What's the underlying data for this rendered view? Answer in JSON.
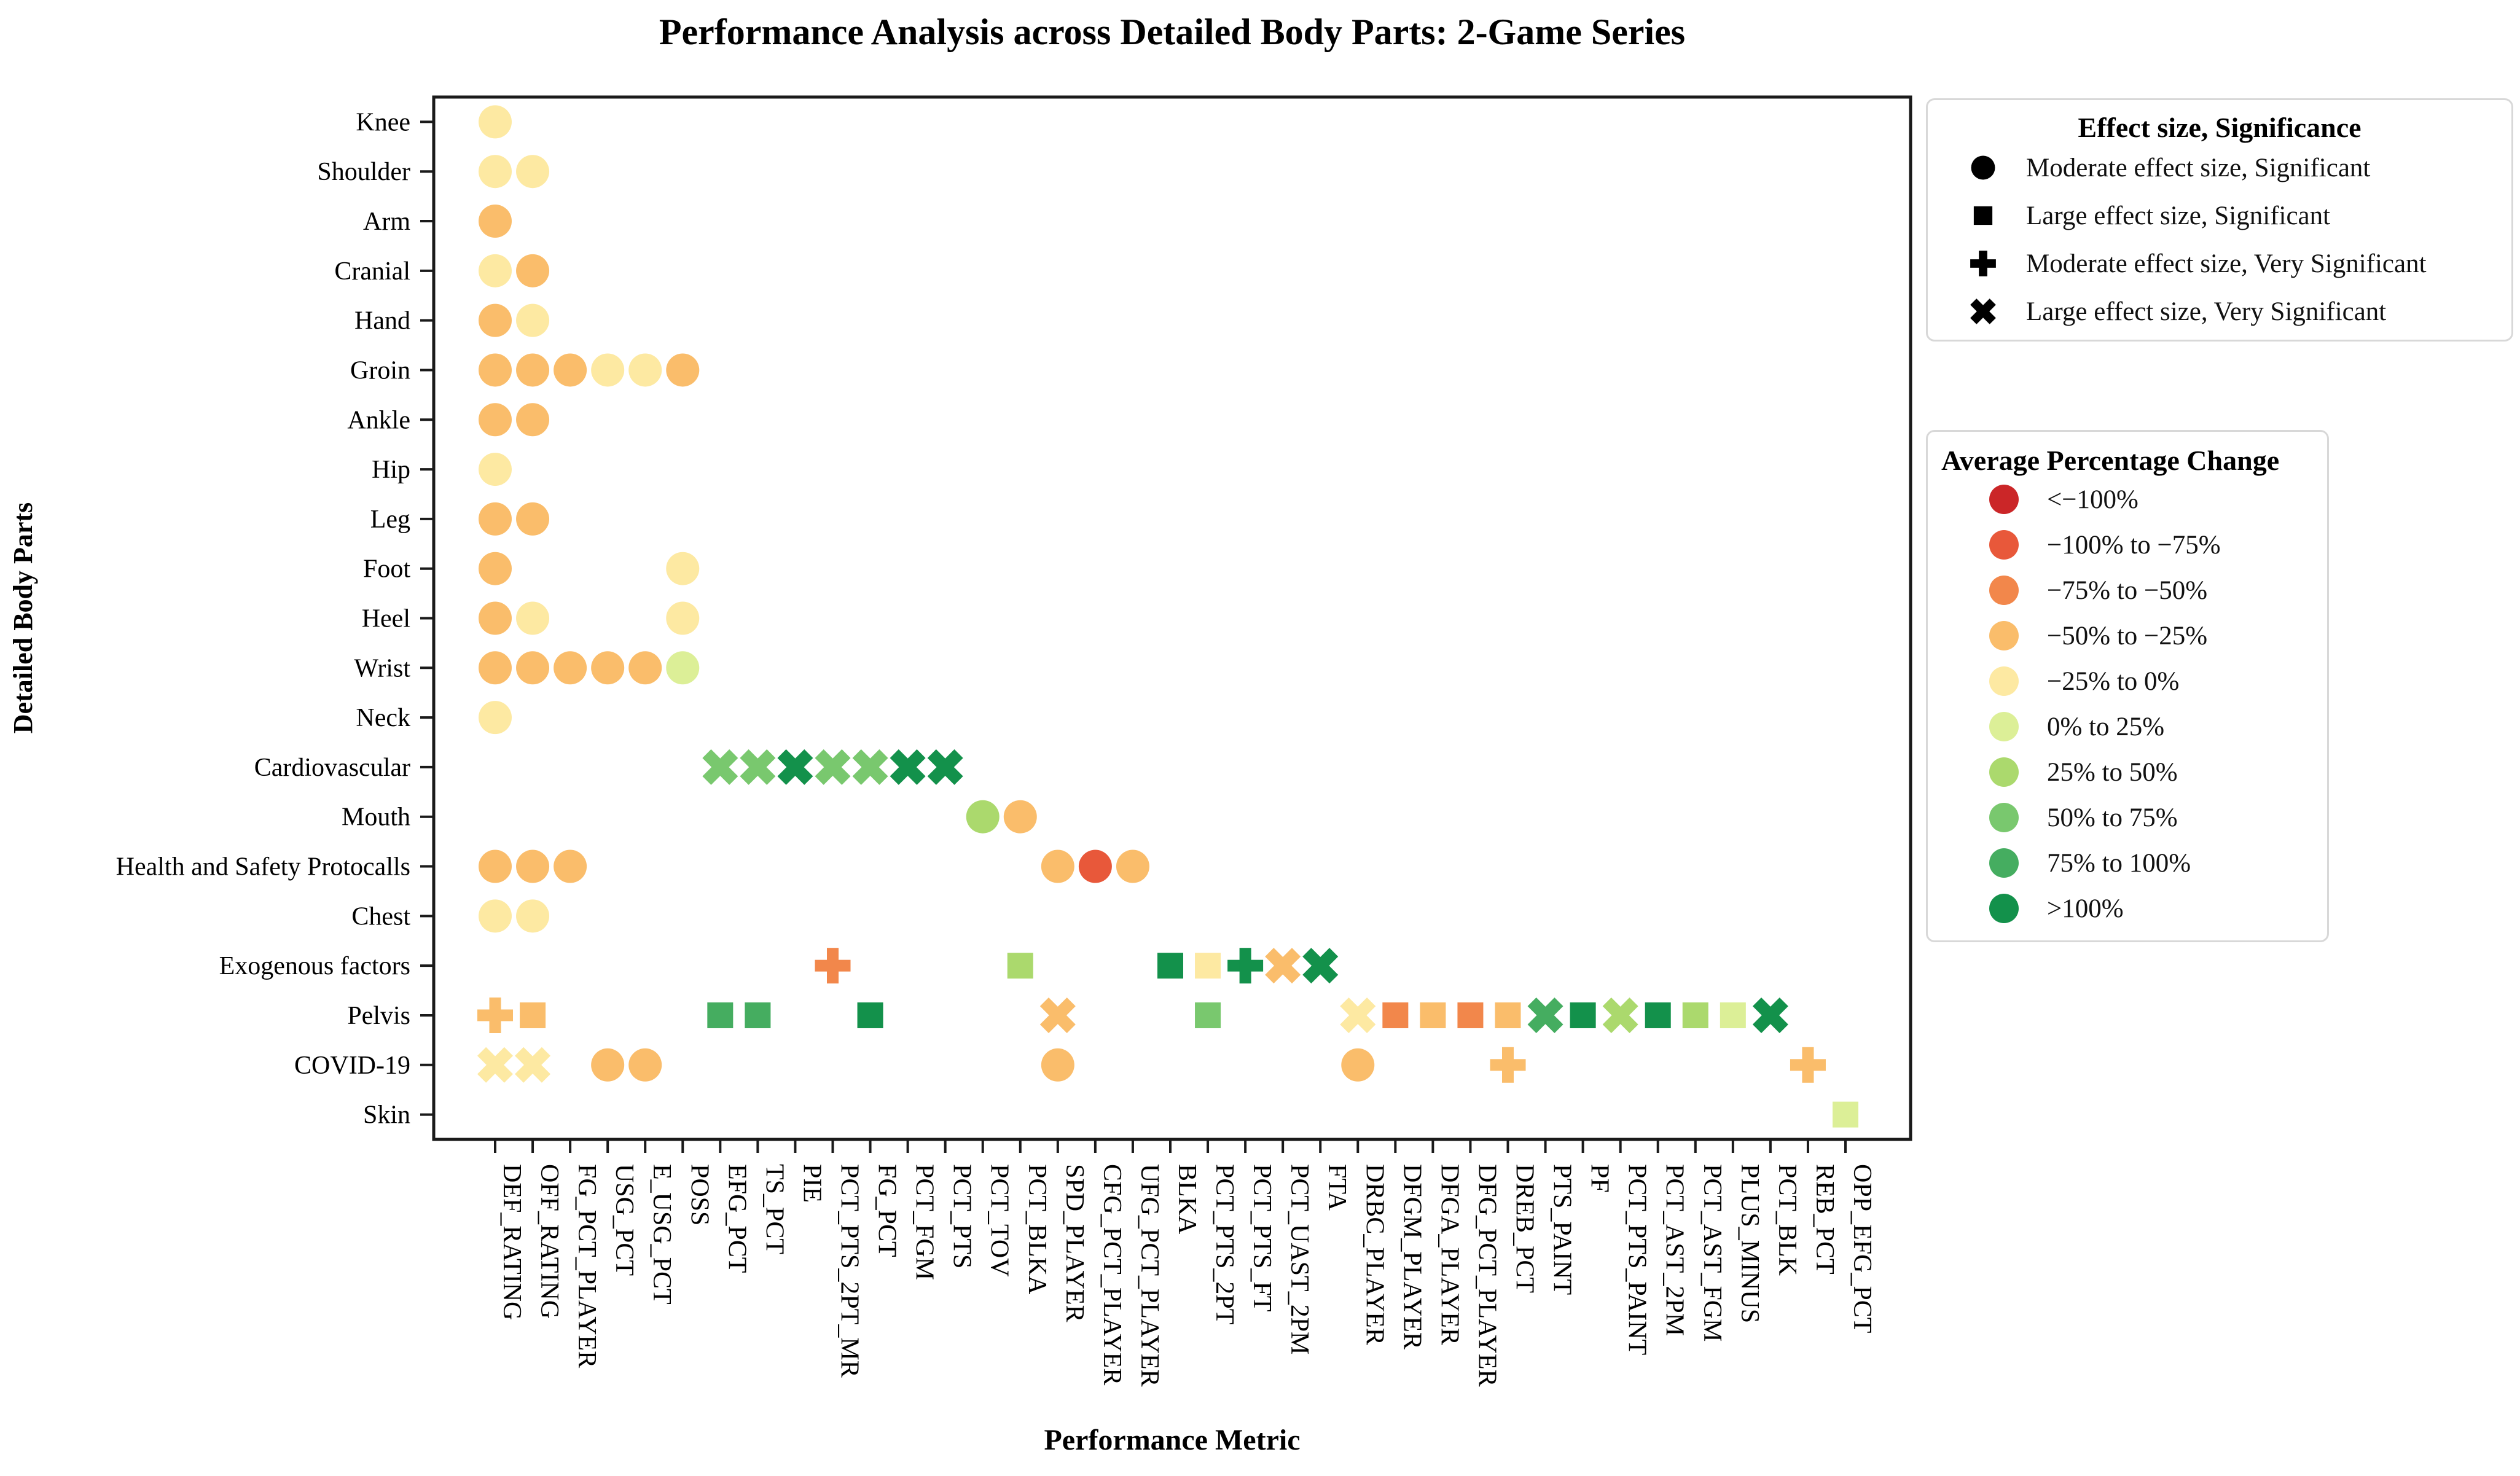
{
  "title": "Performance Analysis across Detailed Body Parts: 2-Game Series",
  "chart_data": {
    "type": "scatter",
    "title": "Performance Analysis across Detailed Body Parts: 2-Game Series",
    "xlabel": "Performance Metric",
    "ylabel": "Detailed Body Parts",
    "grid": false,
    "x_categories": [
      "DEF_RATING",
      "OFF_RATING",
      "FG_PCT_PLAYER",
      "USG_PCT",
      "E_USG_PCT",
      "POSS",
      "EFG_PCT",
      "TS_PCT",
      "PIE",
      "PCT_PTS_2PT_MR",
      "FG_PCT",
      "PCT_FGM",
      "PCT_PTS",
      "PCT_TOV",
      "PCT_BLKA",
      "SPD_PLAYER",
      "CFG_PCT_PLAYER",
      "UFG_PCT_PLAYER",
      "BLKA",
      "PCT_PTS_2PT",
      "PCT_PTS_FT",
      "PCT_UAST_2PM",
      "FTA",
      "DRBC_PLAYER",
      "DFGM_PLAYER",
      "DFGA_PLAYER",
      "DFG_PCT_PLAYER",
      "DREB_PCT",
      "PTS_PAINT",
      "PF",
      "PCT_PTS_PAINT",
      "PCT_AST_2PM",
      "PCT_AST_FGM",
      "PLUS_MINUS",
      "PCT_BLK",
      "REB_PCT",
      "OPP_EFG_PCT"
    ],
    "y_categories": [
      "Knee",
      "Shoulder",
      "Arm",
      "Cranial",
      "Hand",
      "Groin",
      "Ankle",
      "Hip",
      "Leg",
      "Foot",
      "Heel",
      "Wrist",
      "Neck",
      "Cardiovascular",
      "Mouth",
      "Health and Safety Protocalls",
      "Chest",
      "Exogenous factors",
      "Pelvis",
      "COVID-19",
      "Skin"
    ],
    "shape_legend": {
      "title": "Effect size, Significance",
      "items": [
        {
          "marker": "circle",
          "label": "Moderate effect size, Significant"
        },
        {
          "marker": "square",
          "label": "Large effect size, Significant"
        },
        {
          "marker": "plus",
          "label": "Moderate effect size, Very Significant"
        },
        {
          "marker": "x",
          "label": "Large effect size, Very Significant"
        }
      ]
    },
    "color_legend": {
      "title": "Average Percentage Change",
      "items": [
        {
          "color": "#cb2628",
          "label": "<−100%"
        },
        {
          "color": "#e8583a",
          "label": "−100% to −75%"
        },
        {
          "color": "#f2874b",
          "label": "−75% to −50%"
        },
        {
          "color": "#fabd6b",
          "label": "−50% to −25%"
        },
        {
          "color": "#fde9a2",
          "label": "−25% to 0%"
        },
        {
          "color": "#dcef97",
          "label": "0% to 25%"
        },
        {
          "color": "#abd96d",
          "label": "25% to 50%"
        },
        {
          "color": "#79c86e",
          "label": "50% to 75%"
        },
        {
          "color": "#45ad60",
          "label": "75% to 100%"
        },
        {
          "color": "#13914b",
          "label": ">100%"
        }
      ]
    },
    "points": [
      {
        "row": "Knee",
        "col": "DEF_RATING",
        "shape": "circle",
        "bucket": 5
      },
      {
        "row": "Shoulder",
        "col": "DEF_RATING",
        "shape": "circle",
        "bucket": 5
      },
      {
        "row": "Shoulder",
        "col": "OFF_RATING",
        "shape": "circle",
        "bucket": 5
      },
      {
        "row": "Arm",
        "col": "DEF_RATING",
        "shape": "circle",
        "bucket": 4
      },
      {
        "row": "Cranial",
        "col": "DEF_RATING",
        "shape": "circle",
        "bucket": 5
      },
      {
        "row": "Cranial",
        "col": "OFF_RATING",
        "shape": "circle",
        "bucket": 4
      },
      {
        "row": "Hand",
        "col": "DEF_RATING",
        "shape": "circle",
        "bucket": 4
      },
      {
        "row": "Hand",
        "col": "OFF_RATING",
        "shape": "circle",
        "bucket": 5
      },
      {
        "row": "Groin",
        "col": "DEF_RATING",
        "shape": "circle",
        "bucket": 4
      },
      {
        "row": "Groin",
        "col": "OFF_RATING",
        "shape": "circle",
        "bucket": 4
      },
      {
        "row": "Groin",
        "col": "FG_PCT_PLAYER",
        "shape": "circle",
        "bucket": 4
      },
      {
        "row": "Groin",
        "col": "USG_PCT",
        "shape": "circle",
        "bucket": 5
      },
      {
        "row": "Groin",
        "col": "E_USG_PCT",
        "shape": "circle",
        "bucket": 5
      },
      {
        "row": "Groin",
        "col": "POSS",
        "shape": "circle",
        "bucket": 4
      },
      {
        "row": "Ankle",
        "col": "DEF_RATING",
        "shape": "circle",
        "bucket": 4
      },
      {
        "row": "Ankle",
        "col": "OFF_RATING",
        "shape": "circle",
        "bucket": 4
      },
      {
        "row": "Hip",
        "col": "DEF_RATING",
        "shape": "circle",
        "bucket": 5
      },
      {
        "row": "Leg",
        "col": "DEF_RATING",
        "shape": "circle",
        "bucket": 4
      },
      {
        "row": "Leg",
        "col": "OFF_RATING",
        "shape": "circle",
        "bucket": 4
      },
      {
        "row": "Foot",
        "col": "DEF_RATING",
        "shape": "circle",
        "bucket": 4
      },
      {
        "row": "Foot",
        "col": "POSS",
        "shape": "circle",
        "bucket": 5
      },
      {
        "row": "Heel",
        "col": "DEF_RATING",
        "shape": "circle",
        "bucket": 4
      },
      {
        "row": "Heel",
        "col": "OFF_RATING",
        "shape": "circle",
        "bucket": 5
      },
      {
        "row": "Heel",
        "col": "POSS",
        "shape": "circle",
        "bucket": 5
      },
      {
        "row": "Wrist",
        "col": "DEF_RATING",
        "shape": "circle",
        "bucket": 4
      },
      {
        "row": "Wrist",
        "col": "OFF_RATING",
        "shape": "circle",
        "bucket": 4
      },
      {
        "row": "Wrist",
        "col": "FG_PCT_PLAYER",
        "shape": "circle",
        "bucket": 4
      },
      {
        "row": "Wrist",
        "col": "USG_PCT",
        "shape": "circle",
        "bucket": 4
      },
      {
        "row": "Wrist",
        "col": "E_USG_PCT",
        "shape": "circle",
        "bucket": 4
      },
      {
        "row": "Wrist",
        "col": "POSS",
        "shape": "circle",
        "bucket": 6
      },
      {
        "row": "Neck",
        "col": "DEF_RATING",
        "shape": "circle",
        "bucket": 5
      },
      {
        "row": "Cardiovascular",
        "col": "EFG_PCT",
        "shape": "x",
        "bucket": 8
      },
      {
        "row": "Cardiovascular",
        "col": "TS_PCT",
        "shape": "x",
        "bucket": 8
      },
      {
        "row": "Cardiovascular",
        "col": "PIE",
        "shape": "x",
        "bucket": 10
      },
      {
        "row": "Cardiovascular",
        "col": "PCT_PTS_2PT_MR",
        "shape": "x",
        "bucket": 8
      },
      {
        "row": "Cardiovascular",
        "col": "FG_PCT",
        "shape": "x",
        "bucket": 8
      },
      {
        "row": "Cardiovascular",
        "col": "PCT_FGM",
        "shape": "x",
        "bucket": 10
      },
      {
        "row": "Cardiovascular",
        "col": "PCT_PTS",
        "shape": "x",
        "bucket": 10
      },
      {
        "row": "Mouth",
        "col": "PCT_TOV",
        "shape": "circle",
        "bucket": 7
      },
      {
        "row": "Mouth",
        "col": "PCT_BLKA",
        "shape": "circle",
        "bucket": 4
      },
      {
        "row": "Health and Safety Protocalls",
        "col": "DEF_RATING",
        "shape": "circle",
        "bucket": 4
      },
      {
        "row": "Health and Safety Protocalls",
        "col": "OFF_RATING",
        "shape": "circle",
        "bucket": 4
      },
      {
        "row": "Health and Safety Protocalls",
        "col": "FG_PCT_PLAYER",
        "shape": "circle",
        "bucket": 4
      },
      {
        "row": "Health and Safety Protocalls",
        "col": "SPD_PLAYER",
        "shape": "circle",
        "bucket": 4
      },
      {
        "row": "Health and Safety Protocalls",
        "col": "CFG_PCT_PLAYER",
        "shape": "circle",
        "bucket": 2
      },
      {
        "row": "Health and Safety Protocalls",
        "col": "UFG_PCT_PLAYER",
        "shape": "circle",
        "bucket": 4
      },
      {
        "row": "Chest",
        "col": "DEF_RATING",
        "shape": "circle",
        "bucket": 5
      },
      {
        "row": "Chest",
        "col": "OFF_RATING",
        "shape": "circle",
        "bucket": 5
      },
      {
        "row": "Exogenous factors",
        "col": "PCT_PTS_2PT_MR",
        "shape": "plus",
        "bucket": 3
      },
      {
        "row": "Exogenous factors",
        "col": "PCT_BLKA",
        "shape": "square",
        "bucket": 7
      },
      {
        "row": "Exogenous factors",
        "col": "BLKA",
        "shape": "square",
        "bucket": 10
      },
      {
        "row": "Exogenous factors",
        "col": "PCT_PTS_2PT",
        "shape": "square",
        "bucket": 5
      },
      {
        "row": "Exogenous factors",
        "col": "PCT_PTS_FT",
        "shape": "plus",
        "bucket": 10
      },
      {
        "row": "Exogenous factors",
        "col": "PCT_UAST_2PM",
        "shape": "x",
        "bucket": 4
      },
      {
        "row": "Exogenous factors",
        "col": "FTA",
        "shape": "x",
        "bucket": 10
      },
      {
        "row": "Pelvis",
        "col": "DEF_RATING",
        "shape": "plus",
        "bucket": 4
      },
      {
        "row": "Pelvis",
        "col": "OFF_RATING",
        "shape": "square",
        "bucket": 4
      },
      {
        "row": "Pelvis",
        "col": "EFG_PCT",
        "shape": "square",
        "bucket": 9
      },
      {
        "row": "Pelvis",
        "col": "TS_PCT",
        "shape": "square",
        "bucket": 9
      },
      {
        "row": "Pelvis",
        "col": "FG_PCT",
        "shape": "square",
        "bucket": 10
      },
      {
        "row": "Pelvis",
        "col": "SPD_PLAYER",
        "shape": "x",
        "bucket": 4
      },
      {
        "row": "Pelvis",
        "col": "PCT_PTS_2PT",
        "shape": "square",
        "bucket": 8
      },
      {
        "row": "Pelvis",
        "col": "DRBC_PLAYER",
        "shape": "x",
        "bucket": 5
      },
      {
        "row": "Pelvis",
        "col": "DFGM_PLAYER",
        "shape": "square",
        "bucket": 3
      },
      {
        "row": "Pelvis",
        "col": "DFGA_PLAYER",
        "shape": "square",
        "bucket": 4
      },
      {
        "row": "Pelvis",
        "col": "DFG_PCT_PLAYER",
        "shape": "square",
        "bucket": 3
      },
      {
        "row": "Pelvis",
        "col": "DREB_PCT",
        "shape": "square",
        "bucket": 4
      },
      {
        "row": "Pelvis",
        "col": "PTS_PAINT",
        "shape": "x",
        "bucket": 9
      },
      {
        "row": "Pelvis",
        "col": "PF",
        "shape": "square",
        "bucket": 10
      },
      {
        "row": "Pelvis",
        "col": "PCT_PTS_PAINT",
        "shape": "x",
        "bucket": 7
      },
      {
        "row": "Pelvis",
        "col": "PCT_AST_2PM",
        "shape": "square",
        "bucket": 10
      },
      {
        "row": "Pelvis",
        "col": "PCT_AST_FGM",
        "shape": "square",
        "bucket": 7
      },
      {
        "row": "Pelvis",
        "col": "PLUS_MINUS",
        "shape": "square",
        "bucket": 6
      },
      {
        "row": "Pelvis",
        "col": "PCT_BLK",
        "shape": "x",
        "bucket": 10
      },
      {
        "row": "COVID-19",
        "col": "DEF_RATING",
        "shape": "x",
        "bucket": 5
      },
      {
        "row": "COVID-19",
        "col": "OFF_RATING",
        "shape": "x",
        "bucket": 5
      },
      {
        "row": "COVID-19",
        "col": "USG_PCT",
        "shape": "circle",
        "bucket": 4
      },
      {
        "row": "COVID-19",
        "col": "E_USG_PCT",
        "shape": "circle",
        "bucket": 4
      },
      {
        "row": "COVID-19",
        "col": "SPD_PLAYER",
        "shape": "circle",
        "bucket": 4
      },
      {
        "row": "COVID-19",
        "col": "DRBC_PLAYER",
        "shape": "circle",
        "bucket": 4
      },
      {
        "row": "COVID-19",
        "col": "DREB_PCT",
        "shape": "plus",
        "bucket": 4
      },
      {
        "row": "COVID-19",
        "col": "REB_PCT",
        "shape": "plus",
        "bucket": 4
      },
      {
        "row": "Skin",
        "col": "OPP_EFG_PCT",
        "shape": "square",
        "bucket": 6
      }
    ]
  }
}
